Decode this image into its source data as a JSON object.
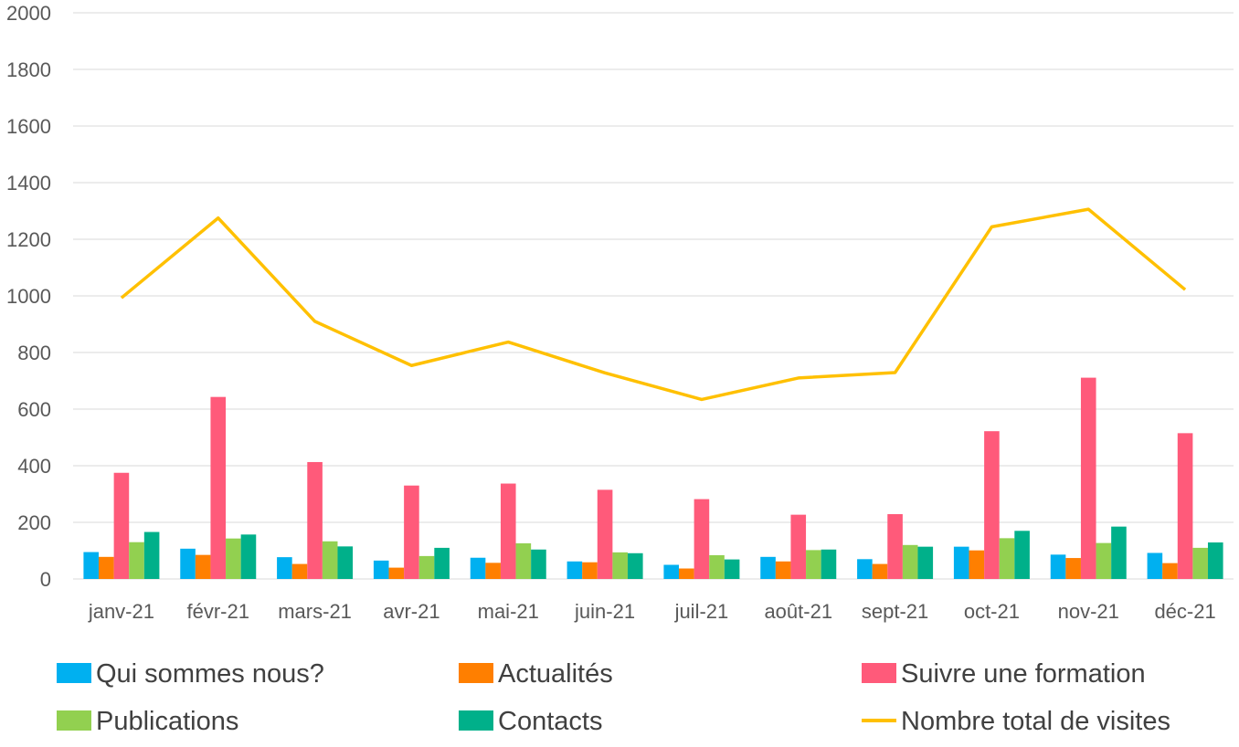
{
  "chart_data": {
    "type": "bar",
    "title": "",
    "xlabel": "",
    "ylabel": "",
    "ylim": [
      0,
      2000
    ],
    "yticks": [
      0,
      200,
      400,
      600,
      800,
      1000,
      1200,
      1400,
      1600,
      1800,
      2000
    ],
    "grid": true,
    "legend_position": "bottom",
    "categories": [
      "janv-21",
      "févr-21",
      "mars-21",
      "avr-21",
      "mai-21",
      "juin-21",
      "juil-21",
      "août-21",
      "sept-21",
      "oct-21",
      "nov-21",
      "déc-21"
    ],
    "series": [
      {
        "name": "Qui sommes nous?",
        "kind": "bar",
        "color": "#00b0f0",
        "values": [
          95,
          107,
          77,
          65,
          75,
          62,
          50,
          78,
          70,
          114,
          86,
          92
        ]
      },
      {
        "name": "Actualités",
        "kind": "bar",
        "color": "#ff7f00",
        "values": [
          78,
          85,
          53,
          40,
          57,
          59,
          37,
          62,
          53,
          101,
          74,
          56
        ]
      },
      {
        "name": "Suivre une formation",
        "kind": "bar",
        "color": "#ff5a7a",
        "values": [
          375,
          643,
          413,
          330,
          337,
          315,
          282,
          227,
          229,
          522,
          711,
          515
        ]
      },
      {
        "name": "Publications",
        "kind": "bar",
        "color": "#92d050",
        "values": [
          130,
          143,
          133,
          81,
          126,
          94,
          84,
          102,
          120,
          144,
          127,
          110
        ]
      },
      {
        "name": "Contacts",
        "kind": "bar",
        "color": "#00b08a",
        "values": [
          166,
          157,
          115,
          110,
          104,
          91,
          69,
          104,
          114,
          170,
          185,
          129
        ]
      },
      {
        "name": "Nombre total de visites",
        "kind": "line",
        "color": "#ffc000",
        "values": [
          993,
          1275,
          910,
          754,
          837,
          728,
          634,
          710,
          729,
          1244,
          1306,
          1022
        ]
      }
    ]
  }
}
